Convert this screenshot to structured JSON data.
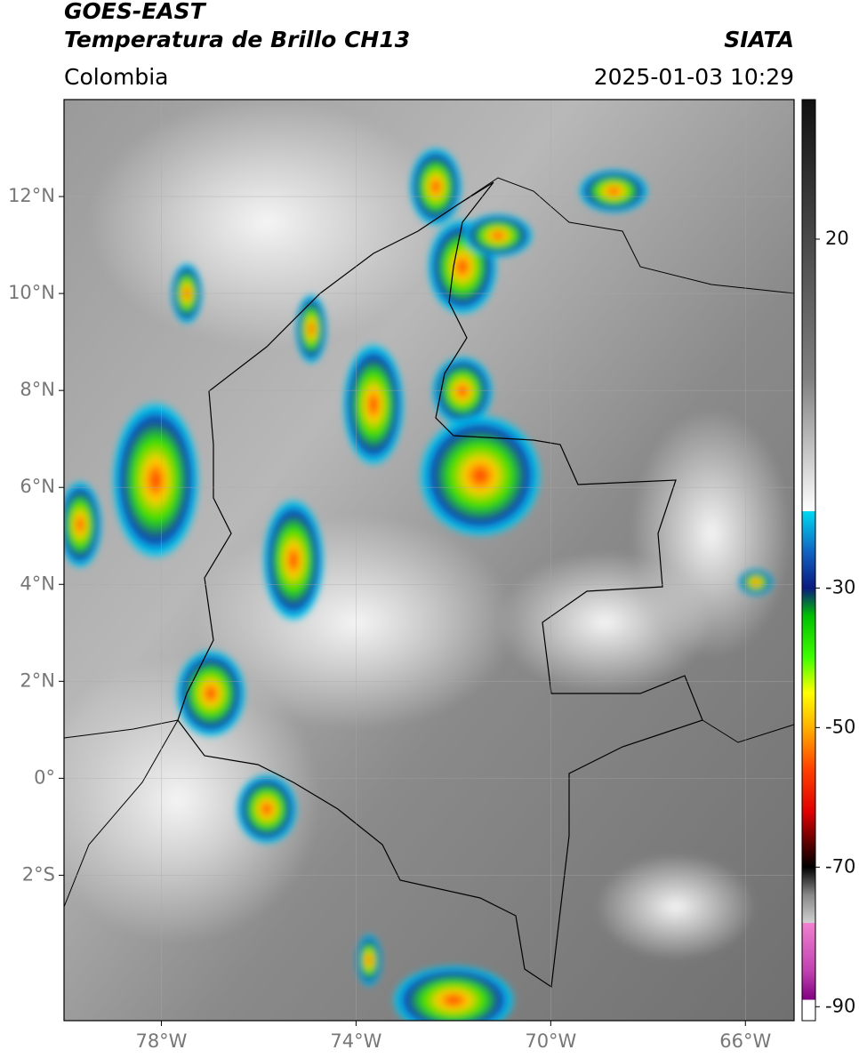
{
  "map_data": {
    "satellite": "GOES-EAST",
    "title": "Temperatura de Brillo CH13",
    "source": "SIATA",
    "region": "Colombia",
    "datetime": "2025-01-03 10:29",
    "lonlim": [
      -80,
      -65
    ],
    "latlim": [
      -5,
      14
    ],
    "xticks": [
      {
        "value": -78,
        "label": "78°W"
      },
      {
        "value": -74,
        "label": "74°W"
      },
      {
        "value": -70,
        "label": "70°W"
      },
      {
        "value": -66,
        "label": "66°W"
      }
    ],
    "yticks": [
      {
        "value": 12,
        "label": "12°N"
      },
      {
        "value": 10,
        "label": "10°N"
      },
      {
        "value": 8,
        "label": "8°N"
      },
      {
        "value": 6,
        "label": "6°N"
      },
      {
        "value": 4,
        "label": "4°N"
      },
      {
        "value": 2,
        "label": "2°N"
      },
      {
        "value": 0,
        "label": "0°"
      },
      {
        "value": -2,
        "label": "2°S"
      }
    ],
    "grid": true,
    "colorbar": {
      "clim": [
        -92,
        40
      ],
      "ticks": [
        20,
        -30,
        -50,
        -70,
        -90
      ],
      "stops": [
        {
          "value": 40,
          "color": "#111111"
        },
        {
          "value": 0,
          "color": "#808080"
        },
        {
          "value": -19,
          "color": "#ffffff"
        },
        {
          "value": -19,
          "color": "#00d8f0"
        },
        {
          "value": -25,
          "color": "#1060c0"
        },
        {
          "value": -30,
          "color": "#0a1a80"
        },
        {
          "value": -34,
          "color": "#00c000"
        },
        {
          "value": -40,
          "color": "#40ff00"
        },
        {
          "value": -45,
          "color": "#ffff00"
        },
        {
          "value": -50,
          "color": "#ffb000"
        },
        {
          "value": -56,
          "color": "#ff4000"
        },
        {
          "value": -62,
          "color": "#e00000"
        },
        {
          "value": -67,
          "color": "#500000"
        },
        {
          "value": -70,
          "color": "#000000"
        },
        {
          "value": -74,
          "color": "#888888"
        },
        {
          "value": -78,
          "color": "#d0d0d0"
        },
        {
          "value": -78,
          "color": "#f080d0"
        },
        {
          "value": -85,
          "color": "#c040b0"
        },
        {
          "value": -89,
          "color": "#800080"
        },
        {
          "value": -89,
          "color": "#ffffff"
        },
        {
          "value": -92,
          "color": "#ffffff"
        }
      ]
    }
  }
}
